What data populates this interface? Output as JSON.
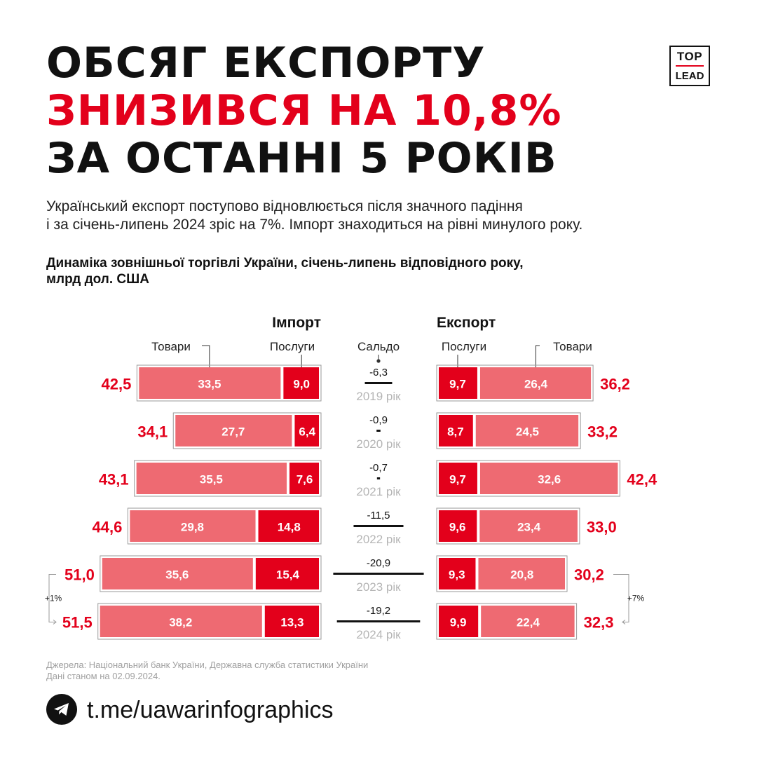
{
  "headline": {
    "line1": "ОБСЯГ ЕКСПОРТУ",
    "line2": "ЗНИЗИВСЯ НА 10,8%",
    "line3": "ЗА ОСТАННІ 5 РОКІВ"
  },
  "logo": {
    "top": "TOP",
    "bottom": "LEAD"
  },
  "lead": {
    "line1": "Український експорт поступово відновлюється після значного падіння",
    "line2": "і за січень-липень 2024 зріс на 7%. Імпорт знаходиться на рівні минулого року."
  },
  "chart_title": {
    "line1": "Динаміка зовнішньої торгівлі України, січень-липень відповідного року,",
    "line2": "млрд дол. США"
  },
  "colors": {
    "accent_red": "#e3001b",
    "goods_pink": "#ee6a72",
    "balance_year_gray": "#b5b5b5",
    "outline_gray": "#9a9a9a"
  },
  "chart_data": {
    "type": "bar",
    "layout": "butterfly-stacked",
    "import_label": "Імпорт",
    "export_label": "Експорт",
    "goods_label": "Товари",
    "services_label": "Послуги",
    "balance_label": "Сальдо",
    "rows": [
      {
        "year_label": "2019 рік",
        "import_goods": "33,5",
        "import_services": "9,0",
        "import_total": "42,5",
        "export_services": "9,7",
        "export_goods": "26,4",
        "export_total": "36,2",
        "balance": "-6,3"
      },
      {
        "year_label": "2020 рік",
        "import_goods": "27,7",
        "import_services": "6,4",
        "import_total": "34,1",
        "export_services": "8,7",
        "export_goods": "24,5",
        "export_total": "33,2",
        "balance": "-0,9"
      },
      {
        "year_label": "2021 рік",
        "import_goods": "35,5",
        "import_services": "7,6",
        "import_total": "43,1",
        "export_services": "9,7",
        "export_goods": "32,6",
        "export_total": "42,4",
        "balance": "-0,7"
      },
      {
        "year_label": "2022 рік",
        "import_goods": "29,8",
        "import_services": "14,8",
        "import_total": "44,6",
        "export_services": "9,6",
        "export_goods": "23,4",
        "export_total": "33,0",
        "balance": "-11,5"
      },
      {
        "year_label": "2023 рік",
        "import_goods": "35,6",
        "import_services": "15,4",
        "import_total": "51,0",
        "export_services": "9,3",
        "export_goods": "20,8",
        "export_total": "30,2",
        "balance": "-20,9"
      },
      {
        "year_label": "2024 рік",
        "import_goods": "38,2",
        "import_services": "13,3",
        "import_total": "51,5",
        "export_services": "9,9",
        "export_goods": "22,4",
        "export_total": "32,3",
        "balance": "-19,2"
      }
    ],
    "import_change_label": "+1%",
    "export_change_label": "+7%"
  },
  "footer": {
    "source": "Джерела: Національний банк України, Державна служба статистики України",
    "date": "Дані станом на 02.09.2024.",
    "telegram_icon": "telegram-icon",
    "link": "t.me/uawarinfographics"
  }
}
